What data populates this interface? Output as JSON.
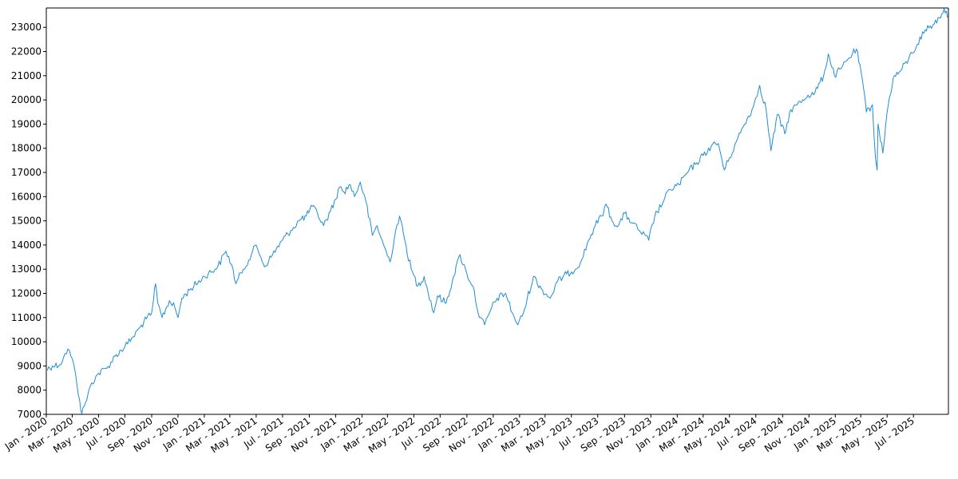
{
  "chart_data": {
    "type": "line",
    "title": "",
    "xlabel": "",
    "ylabel": "",
    "xlim": [
      "2020-01-01",
      "2025-09-20"
    ],
    "ylim": [
      7000,
      23800
    ],
    "grid": false,
    "y_ticks": [
      7000,
      8000,
      9000,
      10000,
      11000,
      12000,
      13000,
      14000,
      15000,
      16000,
      17000,
      18000,
      19000,
      20000,
      21000,
      22000,
      23000
    ],
    "x_ticks": [
      {
        "date": "2020-01-01",
        "label": "Jan - 2020"
      },
      {
        "date": "2020-03-01",
        "label": "Mar - 2020"
      },
      {
        "date": "2020-05-01",
        "label": "May - 2020"
      },
      {
        "date": "2020-07-01",
        "label": "Jul - 2020"
      },
      {
        "date": "2020-09-01",
        "label": "Sep - 2020"
      },
      {
        "date": "2020-11-01",
        "label": "Nov - 2020"
      },
      {
        "date": "2021-01-01",
        "label": "Jan - 2021"
      },
      {
        "date": "2021-03-01",
        "label": "Mar - 2021"
      },
      {
        "date": "2021-05-01",
        "label": "May - 2021"
      },
      {
        "date": "2021-07-01",
        "label": "Jul - 2021"
      },
      {
        "date": "2021-09-01",
        "label": "Sep - 2021"
      },
      {
        "date": "2021-11-01",
        "label": "Nov - 2021"
      },
      {
        "date": "2022-01-01",
        "label": "Jan - 2022"
      },
      {
        "date": "2022-03-01",
        "label": "Mar - 2022"
      },
      {
        "date": "2022-05-01",
        "label": "May - 2022"
      },
      {
        "date": "2022-07-01",
        "label": "Jul - 2022"
      },
      {
        "date": "2022-09-01",
        "label": "Sep - 2022"
      },
      {
        "date": "2022-11-01",
        "label": "Nov - 2022"
      },
      {
        "date": "2023-01-01",
        "label": "Jan - 2023"
      },
      {
        "date": "2023-03-01",
        "label": "Mar - 2023"
      },
      {
        "date": "2023-05-01",
        "label": "May - 2023"
      },
      {
        "date": "2023-07-01",
        "label": "Jul - 2023"
      },
      {
        "date": "2023-09-01",
        "label": "Sep - 2023"
      },
      {
        "date": "2023-11-01",
        "label": "Nov - 2023"
      },
      {
        "date": "2024-01-01",
        "label": "Jan - 2024"
      },
      {
        "date": "2024-03-01",
        "label": "Mar - 2024"
      },
      {
        "date": "2024-05-01",
        "label": "May - 2024"
      },
      {
        "date": "2024-07-01",
        "label": "Jul - 2024"
      },
      {
        "date": "2024-09-01",
        "label": "Sep - 2024"
      },
      {
        "date": "2024-11-01",
        "label": "Nov - 2024"
      },
      {
        "date": "2025-01-01",
        "label": "Jan - 2025"
      },
      {
        "date": "2025-03-01",
        "label": "Mar - 2025"
      },
      {
        "date": "2025-05-01",
        "label": "May - 2025"
      },
      {
        "date": "2025-07-01",
        "label": "Jul - 2025"
      }
    ],
    "series": [
      {
        "color": "#1f8dd6",
        "points": [
          [
            "2020-01-01",
            8850
          ],
          [
            "2020-01-15",
            9000
          ],
          [
            "2020-02-01",
            9050
          ],
          [
            "2020-02-10",
            9350
          ],
          [
            "2020-02-20",
            9700
          ],
          [
            "2020-03-01",
            9300
          ],
          [
            "2020-03-10",
            8500
          ],
          [
            "2020-03-18",
            7600
          ],
          [
            "2020-03-23",
            7000
          ],
          [
            "2020-04-01",
            7500
          ],
          [
            "2020-04-15",
            8300
          ],
          [
            "2020-05-01",
            8700
          ],
          [
            "2020-05-20",
            8900
          ],
          [
            "2020-06-08",
            9400
          ],
          [
            "2020-07-01",
            9800
          ],
          [
            "2020-07-20",
            10200
          ],
          [
            "2020-08-05",
            10600
          ],
          [
            "2020-08-20",
            10950
          ],
          [
            "2020-09-01",
            11200
          ],
          [
            "2020-09-05",
            11700
          ],
          [
            "2020-09-10",
            12400
          ],
          [
            "2020-09-15",
            11600
          ],
          [
            "2020-09-25",
            11000
          ],
          [
            "2020-10-12",
            11700
          ],
          [
            "2020-10-25",
            11400
          ],
          [
            "2020-11-01",
            11000
          ],
          [
            "2020-11-10",
            11800
          ],
          [
            "2020-12-01",
            12200
          ],
          [
            "2021-01-01",
            12700
          ],
          [
            "2021-02-01",
            13100
          ],
          [
            "2021-02-20",
            13750
          ],
          [
            "2021-03-05",
            13200
          ],
          [
            "2021-03-15",
            12400
          ],
          [
            "2021-04-01",
            13000
          ],
          [
            "2021-04-20",
            13600
          ],
          [
            "2021-05-01",
            14000
          ],
          [
            "2021-05-12",
            13500
          ],
          [
            "2021-05-20",
            13100
          ],
          [
            "2021-06-08",
            13600
          ],
          [
            "2021-07-01",
            14200
          ],
          [
            "2021-07-20",
            14600
          ],
          [
            "2021-08-08",
            15000
          ],
          [
            "2021-08-25",
            15200
          ],
          [
            "2021-09-08",
            15600
          ],
          [
            "2021-09-20",
            15300
          ],
          [
            "2021-10-04",
            14800
          ],
          [
            "2021-10-20",
            15400
          ],
          [
            "2021-11-01",
            15900
          ],
          [
            "2021-11-10",
            16400
          ],
          [
            "2021-11-20",
            16200
          ],
          [
            "2021-12-05",
            16500
          ],
          [
            "2021-12-15",
            16000
          ],
          [
            "2021-12-28",
            16600
          ],
          [
            "2022-01-10",
            15800
          ],
          [
            "2022-01-25",
            14400
          ],
          [
            "2022-02-05",
            14800
          ],
          [
            "2022-02-20",
            14000
          ],
          [
            "2022-03-07",
            13300
          ],
          [
            "2022-03-20",
            14600
          ],
          [
            "2022-03-29",
            15200
          ],
          [
            "2022-04-10",
            14200
          ],
          [
            "2022-04-25",
            13000
          ],
          [
            "2022-05-10",
            12300
          ],
          [
            "2022-05-25",
            12700
          ],
          [
            "2022-06-16",
            11200
          ],
          [
            "2022-06-25",
            11900
          ],
          [
            "2022-07-15",
            11600
          ],
          [
            "2022-08-01",
            12700
          ],
          [
            "2022-08-16",
            13600
          ],
          [
            "2022-09-01",
            12800
          ],
          [
            "2022-09-15",
            12300
          ],
          [
            "2022-09-30",
            11000
          ],
          [
            "2022-10-12",
            10700
          ],
          [
            "2022-10-28",
            11400
          ],
          [
            "2022-11-10",
            11800
          ],
          [
            "2022-11-30",
            12000
          ],
          [
            "2022-12-15",
            11200
          ],
          [
            "2022-12-28",
            10700
          ],
          [
            "2023-01-10",
            11200
          ],
          [
            "2023-02-02",
            12700
          ],
          [
            "2023-02-20",
            12200
          ],
          [
            "2023-03-13",
            11800
          ],
          [
            "2023-03-30",
            12500
          ],
          [
            "2023-04-20",
            12800
          ],
          [
            "2023-05-10",
            13000
          ],
          [
            "2023-05-25",
            13400
          ],
          [
            "2023-06-10",
            14200
          ],
          [
            "2023-06-25",
            14800
          ],
          [
            "2023-07-10",
            15200
          ],
          [
            "2023-07-20",
            15700
          ],
          [
            "2023-08-03",
            15000
          ],
          [
            "2023-08-18",
            14800
          ],
          [
            "2023-09-01",
            15300
          ],
          [
            "2023-09-20",
            14900
          ],
          [
            "2023-10-05",
            14600
          ],
          [
            "2023-10-27",
            14200
          ],
          [
            "2023-11-10",
            15200
          ],
          [
            "2023-11-30",
            15800
          ],
          [
            "2023-12-15",
            16300
          ],
          [
            "2024-01-05",
            16500
          ],
          [
            "2024-01-25",
            17000
          ],
          [
            "2024-02-15",
            17400
          ],
          [
            "2024-03-01",
            17700
          ],
          [
            "2024-03-20",
            18100
          ],
          [
            "2024-04-05",
            18200
          ],
          [
            "2024-04-19",
            17100
          ],
          [
            "2024-05-01",
            17600
          ],
          [
            "2024-05-20",
            18400
          ],
          [
            "2024-06-05",
            19000
          ],
          [
            "2024-06-25",
            19700
          ],
          [
            "2024-07-10",
            20600
          ],
          [
            "2024-07-25",
            19600
          ],
          [
            "2024-08-05",
            17900
          ],
          [
            "2024-08-20",
            19400
          ],
          [
            "2024-09-06",
            18600
          ],
          [
            "2024-09-20",
            19600
          ],
          [
            "2024-10-05",
            19800
          ],
          [
            "2024-10-30",
            20200
          ],
          [
            "2024-11-15",
            20300
          ],
          [
            "2024-12-05",
            21000
          ],
          [
            "2024-12-16",
            21900
          ],
          [
            "2024-12-30",
            21000
          ],
          [
            "2025-01-15",
            21300
          ],
          [
            "2025-01-31",
            21700
          ],
          [
            "2025-02-19",
            22100
          ],
          [
            "2025-03-05",
            20800
          ],
          [
            "2025-03-14",
            19500
          ],
          [
            "2025-03-28",
            19800
          ],
          [
            "2025-04-04",
            17600
          ],
          [
            "2025-04-08",
            17100
          ],
          [
            "2025-04-10",
            19000
          ],
          [
            "2025-04-21",
            17800
          ],
          [
            "2025-05-01",
            19500
          ],
          [
            "2025-05-15",
            20900
          ],
          [
            "2025-06-01",
            21200
          ],
          [
            "2025-06-20",
            21700
          ],
          [
            "2025-07-10",
            22300
          ],
          [
            "2025-07-28",
            22900
          ],
          [
            "2025-08-15",
            23100
          ],
          [
            "2025-08-30",
            23400
          ],
          [
            "2025-09-10",
            23800
          ],
          [
            "2025-09-18",
            23400
          ]
        ]
      }
    ]
  }
}
